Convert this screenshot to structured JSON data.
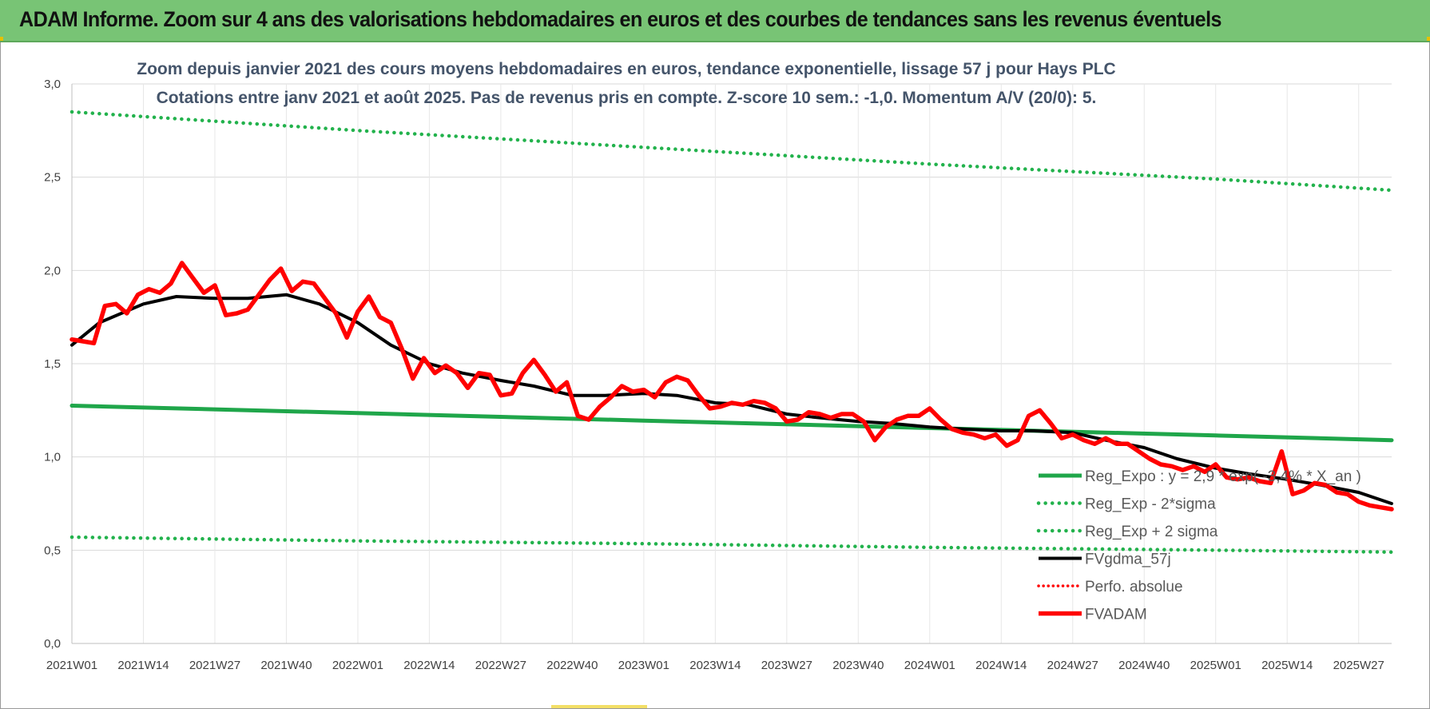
{
  "header": {
    "title": "ADAM Informe. Zoom sur 4 ans des valorisations hebdomadaires en euros et des courbes de tendances sans les revenus éventuels"
  },
  "colors": {
    "header_bg": "#78c475",
    "reg_expo": "#1fa64a",
    "sigma": "#22b24c",
    "fvgdma": "#000000",
    "fvadam": "#ff0000",
    "perfo": "#ff0000",
    "grid": "#d9d9d9"
  },
  "chart_data": {
    "type": "line",
    "title": "Zoom depuis janvier 2021 des cours moyens hebdomadaires en euros, tendance exponentielle, lissage 57 j pour Hays PLC",
    "subtitle": "Cotations entre janv 2021 et août 2025.  Pas de revenus pris en compte. Z-score 10 sem.: -1,0. Momentum A/V (20/0): 5.",
    "xlabel": "",
    "ylabel": "",
    "ylim": [
      0,
      3
    ],
    "y_ticks": [
      "0,0",
      "0,5",
      "1,0",
      "1,5",
      "2,0",
      "2,5",
      "3,0"
    ],
    "x_ticks": [
      "2021W01",
      "2021W14",
      "2021W27",
      "2021W40",
      "2022W01",
      "2022W14",
      "2022W27",
      "2022W40",
      "2023W01",
      "2023W14",
      "2023W27",
      "2023W40",
      "2024W01",
      "2024W14",
      "2024W27",
      "2024W40",
      "2025W01",
      "2025W14",
      "2025W27"
    ],
    "grid": true,
    "legend_position": "bottom-right",
    "series": [
      {
        "name": "Reg_Expo : y = 2,9 * exp( -3,4% * X_an )",
        "style": "solid-thick",
        "x": [
          "2021W01",
          "2022W01",
          "2023W01",
          "2024W01",
          "2025W01",
          "2025W33"
        ],
        "values": [
          1.275,
          1.235,
          1.195,
          1.155,
          1.115,
          1.09
        ]
      },
      {
        "name": "Reg_Exp - 2*sigma",
        "style": "dotted",
        "x": [
          "2021W01",
          "2022W01",
          "2023W01",
          "2024W01",
          "2025W01",
          "2025W33"
        ],
        "values": [
          0.57,
          0.55,
          0.535,
          0.515,
          0.5,
          0.49
        ]
      },
      {
        "name": "Reg_Exp + 2 sigma",
        "style": "dotted",
        "x": [
          "2021W01",
          "2022W01",
          "2023W01",
          "2024W01",
          "2025W01",
          "2025W33"
        ],
        "values": [
          2.85,
          2.75,
          2.66,
          2.57,
          2.49,
          2.43
        ]
      },
      {
        "name": "FVgdma_57j",
        "style": "solid",
        "x": [
          "2021W01",
          "2021W06",
          "2021W14",
          "2021W20",
          "2021W27",
          "2021W33",
          "2021W40",
          "2021W46",
          "2022W01",
          "2022W07",
          "2022W14",
          "2022W20",
          "2022W27",
          "2022W33",
          "2022W40",
          "2022W46",
          "2023W01",
          "2023W07",
          "2023W14",
          "2023W20",
          "2023W27",
          "2023W33",
          "2023W40",
          "2023W46",
          "2024W01",
          "2024W07",
          "2024W14",
          "2024W20",
          "2024W27",
          "2024W33",
          "2024W40",
          "2024W46",
          "2025W01",
          "2025W07",
          "2025W14",
          "2025W20",
          "2025W27",
          "2025W33"
        ],
        "values": [
          1.6,
          1.72,
          1.82,
          1.86,
          1.85,
          1.85,
          1.87,
          1.82,
          1.72,
          1.6,
          1.5,
          1.45,
          1.41,
          1.38,
          1.33,
          1.33,
          1.34,
          1.33,
          1.29,
          1.28,
          1.23,
          1.21,
          1.19,
          1.18,
          1.16,
          1.15,
          1.14,
          1.14,
          1.13,
          1.09,
          1.05,
          0.99,
          0.94,
          0.91,
          0.88,
          0.85,
          0.81,
          0.75
        ]
      },
      {
        "name": "Perfo. absolue",
        "style": "dotted",
        "x": [],
        "values": []
      },
      {
        "name": "FVADAM",
        "style": "solid-thick",
        "x": [
          "2021W01",
          "2021W03",
          "2021W05",
          "2021W07",
          "2021W09",
          "2021W11",
          "2021W13",
          "2021W15",
          "2021W17",
          "2021W19",
          "2021W21",
          "2021W23",
          "2021W25",
          "2021W27",
          "2021W29",
          "2021W31",
          "2021W33",
          "2021W35",
          "2021W37",
          "2021W39",
          "2021W41",
          "2021W43",
          "2021W45",
          "2021W47",
          "2021W49",
          "2021W51",
          "2022W01",
          "2022W03",
          "2022W05",
          "2022W07",
          "2022W09",
          "2022W11",
          "2022W13",
          "2022W15",
          "2022W17",
          "2022W19",
          "2022W21",
          "2022W23",
          "2022W25",
          "2022W27",
          "2022W29",
          "2022W31",
          "2022W33",
          "2022W35",
          "2022W37",
          "2022W39",
          "2022W41",
          "2022W43",
          "2022W45",
          "2022W47",
          "2022W49",
          "2022W51",
          "2023W01",
          "2023W03",
          "2023W05",
          "2023W07",
          "2023W09",
          "2023W11",
          "2023W13",
          "2023W15",
          "2023W17",
          "2023W19",
          "2023W21",
          "2023W23",
          "2023W25",
          "2023W27",
          "2023W29",
          "2023W31",
          "2023W33",
          "2023W35",
          "2023W37",
          "2023W39",
          "2023W41",
          "2023W43",
          "2023W45",
          "2023W47",
          "2023W49",
          "2023W51",
          "2024W01",
          "2024W03",
          "2024W05",
          "2024W07",
          "2024W09",
          "2024W11",
          "2024W13",
          "2024W15",
          "2024W17",
          "2024W19",
          "2024W21",
          "2024W23",
          "2024W25",
          "2024W27",
          "2024W29",
          "2024W31",
          "2024W33",
          "2024W35",
          "2024W37",
          "2024W39",
          "2024W41",
          "2024W43",
          "2024W45",
          "2024W47",
          "2024W49",
          "2024W51",
          "2025W01",
          "2025W03",
          "2025W05",
          "2025W07",
          "2025W09",
          "2025W11",
          "2025W13",
          "2025W15",
          "2025W17",
          "2025W19",
          "2025W21",
          "2025W23",
          "2025W25",
          "2025W27",
          "2025W29",
          "2025W31",
          "2025W33"
        ],
        "values": [
          1.63,
          1.62,
          1.61,
          1.81,
          1.82,
          1.77,
          1.87,
          1.9,
          1.88,
          1.93,
          2.04,
          1.96,
          1.88,
          1.92,
          1.76,
          1.77,
          1.79,
          1.87,
          1.95,
          2.01,
          1.89,
          1.94,
          1.93,
          1.85,
          1.77,
          1.64,
          1.78,
          1.86,
          1.75,
          1.72,
          1.58,
          1.42,
          1.53,
          1.45,
          1.49,
          1.45,
          1.37,
          1.45,
          1.44,
          1.33,
          1.34,
          1.45,
          1.52,
          1.44,
          1.35,
          1.4,
          1.22,
          1.2,
          1.27,
          1.32,
          1.38,
          1.35,
          1.36,
          1.32,
          1.4,
          1.43,
          1.41,
          1.33,
          1.26,
          1.27,
          1.29,
          1.28,
          1.3,
          1.29,
          1.26,
          1.19,
          1.2,
          1.24,
          1.23,
          1.21,
          1.23,
          1.23,
          1.19,
          1.09,
          1.16,
          1.2,
          1.22,
          1.22,
          1.26,
          1.2,
          1.15,
          1.13,
          1.12,
          1.1,
          1.12,
          1.06,
          1.09,
          1.22,
          1.25,
          1.18,
          1.1,
          1.12,
          1.09,
          1.07,
          1.1,
          1.07,
          1.07,
          1.03,
          0.99,
          0.96,
          0.95,
          0.93,
          0.95,
          0.92,
          0.96,
          0.89,
          0.88,
          0.89,
          0.87,
          0.86,
          1.03,
          0.8,
          0.82,
          0.86,
          0.85,
          0.81,
          0.8,
          0.76,
          0.74,
          0.73,
          0.72
        ]
      }
    ]
  }
}
